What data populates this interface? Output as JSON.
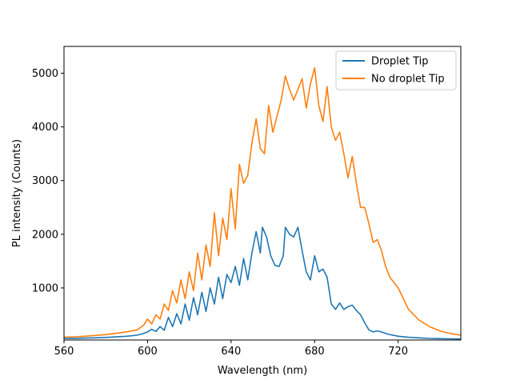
{
  "chart_data": {
    "type": "line",
    "title": "",
    "xlabel": "Wavelength (nm)",
    "ylabel": "PL intensity (Counts)",
    "xlim": [
      560,
      750
    ],
    "ylim": [
      30,
      5500
    ],
    "xticks": [
      560,
      600,
      640,
      680,
      720
    ],
    "yticks": [
      1000,
      2000,
      3000,
      4000,
      5000
    ],
    "grid": false,
    "legend_position": "top-right",
    "series": [
      {
        "name": "Droplet Tip",
        "color": "#1f77b4",
        "points": [
          [
            560,
            60
          ],
          [
            565,
            62
          ],
          [
            570,
            66
          ],
          [
            575,
            70
          ],
          [
            580,
            78
          ],
          [
            585,
            88
          ],
          [
            590,
            100
          ],
          [
            595,
            120
          ],
          [
            598,
            150
          ],
          [
            600,
            180
          ],
          [
            602,
            230
          ],
          [
            604,
            190
          ],
          [
            606,
            280
          ],
          [
            608,
            210
          ],
          [
            610,
            450
          ],
          [
            612,
            280
          ],
          [
            614,
            520
          ],
          [
            616,
            330
          ],
          [
            618,
            700
          ],
          [
            620,
            400
          ],
          [
            622,
            820
          ],
          [
            624,
            500
          ],
          [
            626,
            920
          ],
          [
            628,
            560
          ],
          [
            630,
            1000
          ],
          [
            632,
            700
          ],
          [
            634,
            1200
          ],
          [
            636,
            800
          ],
          [
            638,
            1250
          ],
          [
            640,
            1100
          ],
          [
            642,
            1400
          ],
          [
            644,
            1050
          ],
          [
            646,
            1550
          ],
          [
            648,
            1150
          ],
          [
            650,
            1650
          ],
          [
            652,
            2050
          ],
          [
            654,
            1650
          ],
          [
            655,
            2130
          ],
          [
            657,
            1950
          ],
          [
            659,
            1600
          ],
          [
            661,
            1420
          ],
          [
            663,
            1400
          ],
          [
            665,
            1600
          ],
          [
            666,
            2130
          ],
          [
            668,
            2000
          ],
          [
            670,
            1950
          ],
          [
            672,
            2130
          ],
          [
            674,
            1700
          ],
          [
            676,
            1300
          ],
          [
            678,
            1150
          ],
          [
            680,
            1600
          ],
          [
            682,
            1300
          ],
          [
            684,
            1350
          ],
          [
            686,
            1200
          ],
          [
            688,
            700
          ],
          [
            690,
            600
          ],
          [
            692,
            720
          ],
          [
            694,
            600
          ],
          [
            696,
            650
          ],
          [
            698,
            680
          ],
          [
            700,
            580
          ],
          [
            702,
            500
          ],
          [
            704,
            350
          ],
          [
            706,
            220
          ],
          [
            708,
            180
          ],
          [
            710,
            200
          ],
          [
            712,
            180
          ],
          [
            715,
            140
          ],
          [
            720,
            100
          ],
          [
            725,
            80
          ],
          [
            730,
            70
          ],
          [
            735,
            60
          ],
          [
            740,
            55
          ],
          [
            745,
            52
          ],
          [
            750,
            50
          ]
        ]
      },
      {
        "name": "No droplet Tip",
        "color": "#ff7f0e",
        "points": [
          [
            560,
            80
          ],
          [
            565,
            90
          ],
          [
            570,
            100
          ],
          [
            575,
            115
          ],
          [
            580,
            130
          ],
          [
            585,
            155
          ],
          [
            590,
            180
          ],
          [
            595,
            220
          ],
          [
            598,
            300
          ],
          [
            600,
            420
          ],
          [
            602,
            330
          ],
          [
            604,
            500
          ],
          [
            606,
            420
          ],
          [
            608,
            700
          ],
          [
            610,
            580
          ],
          [
            612,
            950
          ],
          [
            614,
            720
          ],
          [
            616,
            1150
          ],
          [
            618,
            800
          ],
          [
            620,
            1300
          ],
          [
            622,
            950
          ],
          [
            624,
            1650
          ],
          [
            626,
            1150
          ],
          [
            628,
            1800
          ],
          [
            630,
            1400
          ],
          [
            632,
            2400
          ],
          [
            634,
            1600
          ],
          [
            636,
            2300
          ],
          [
            638,
            1900
          ],
          [
            640,
            2850
          ],
          [
            642,
            2100
          ],
          [
            644,
            3300
          ],
          [
            646,
            2950
          ],
          [
            648,
            3100
          ],
          [
            650,
            3700
          ],
          [
            652,
            4150
          ],
          [
            654,
            3600
          ],
          [
            656,
            3500
          ],
          [
            658,
            4400
          ],
          [
            660,
            3900
          ],
          [
            662,
            4200
          ],
          [
            664,
            4500
          ],
          [
            666,
            4950
          ],
          [
            668,
            4700
          ],
          [
            670,
            4500
          ],
          [
            672,
            4700
          ],
          [
            674,
            4900
          ],
          [
            676,
            4350
          ],
          [
            678,
            4800
          ],
          [
            680,
            5100
          ],
          [
            682,
            4400
          ],
          [
            684,
            4100
          ],
          [
            686,
            4750
          ],
          [
            688,
            4000
          ],
          [
            690,
            3750
          ],
          [
            692,
            3900
          ],
          [
            694,
            3500
          ],
          [
            696,
            3050
          ],
          [
            698,
            3450
          ],
          [
            700,
            2950
          ],
          [
            702,
            2500
          ],
          [
            704,
            2500
          ],
          [
            706,
            2200
          ],
          [
            708,
            1850
          ],
          [
            710,
            1900
          ],
          [
            712,
            1700
          ],
          [
            714,
            1400
          ],
          [
            716,
            1200
          ],
          [
            720,
            1000
          ],
          [
            725,
            600
          ],
          [
            730,
            400
          ],
          [
            735,
            280
          ],
          [
            740,
            200
          ],
          [
            745,
            150
          ],
          [
            750,
            120
          ]
        ]
      }
    ]
  }
}
